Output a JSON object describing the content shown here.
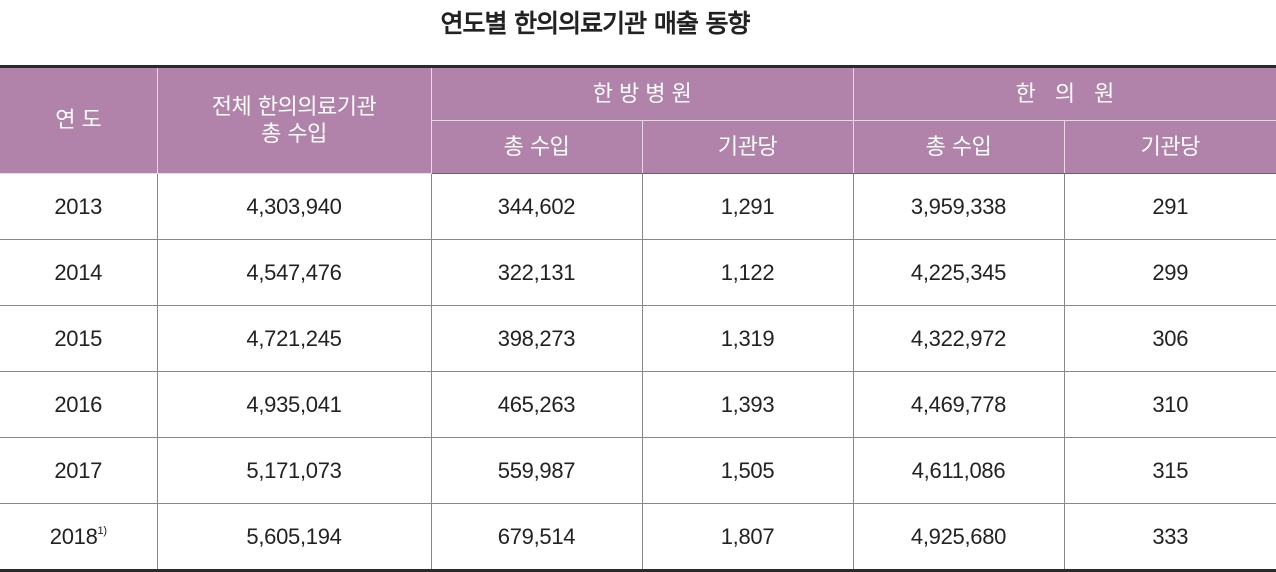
{
  "title": "연도별 한의의료기관 매출 동향",
  "header": {
    "year": "연 도",
    "total": "전체 한의의료기관\n총 수입",
    "total_line1": "전체 한의의료기관",
    "total_line2": "총 수입",
    "hospital": "한 방 병 원",
    "clinic": "한   의   원",
    "sub_total": "총 수입",
    "sub_per": "기관당"
  },
  "header_color": "#b283aa",
  "rows": [
    {
      "year": "2013",
      "note": "",
      "total": "4,303,940",
      "hosp_total": "344,602",
      "hosp_per": "1,291",
      "clinic_total": "3,959,338",
      "clinic_per": "291"
    },
    {
      "year": "2014",
      "note": "",
      "total": "4,547,476",
      "hosp_total": "322,131",
      "hosp_per": "1,122",
      "clinic_total": "4,225,345",
      "clinic_per": "299"
    },
    {
      "year": "2015",
      "note": "",
      "total": "4,721,245",
      "hosp_total": "398,273",
      "hosp_per": "1,319",
      "clinic_total": "4,322,972",
      "clinic_per": "306"
    },
    {
      "year": "2016",
      "note": "",
      "total": "4,935,041",
      "hosp_total": "465,263",
      "hosp_per": "1,393",
      "clinic_total": "4,469,778",
      "clinic_per": "310"
    },
    {
      "year": "2017",
      "note": "",
      "total": "5,171,073",
      "hosp_total": "559,987",
      "hosp_per": "1,505",
      "clinic_total": "4,611,086",
      "clinic_per": "315"
    },
    {
      "year": "2018",
      "note": "1)",
      "total": "5,605,194",
      "hosp_total": "679,514",
      "hosp_per": "1,807",
      "clinic_total": "4,925,680",
      "clinic_per": "333"
    }
  ]
}
